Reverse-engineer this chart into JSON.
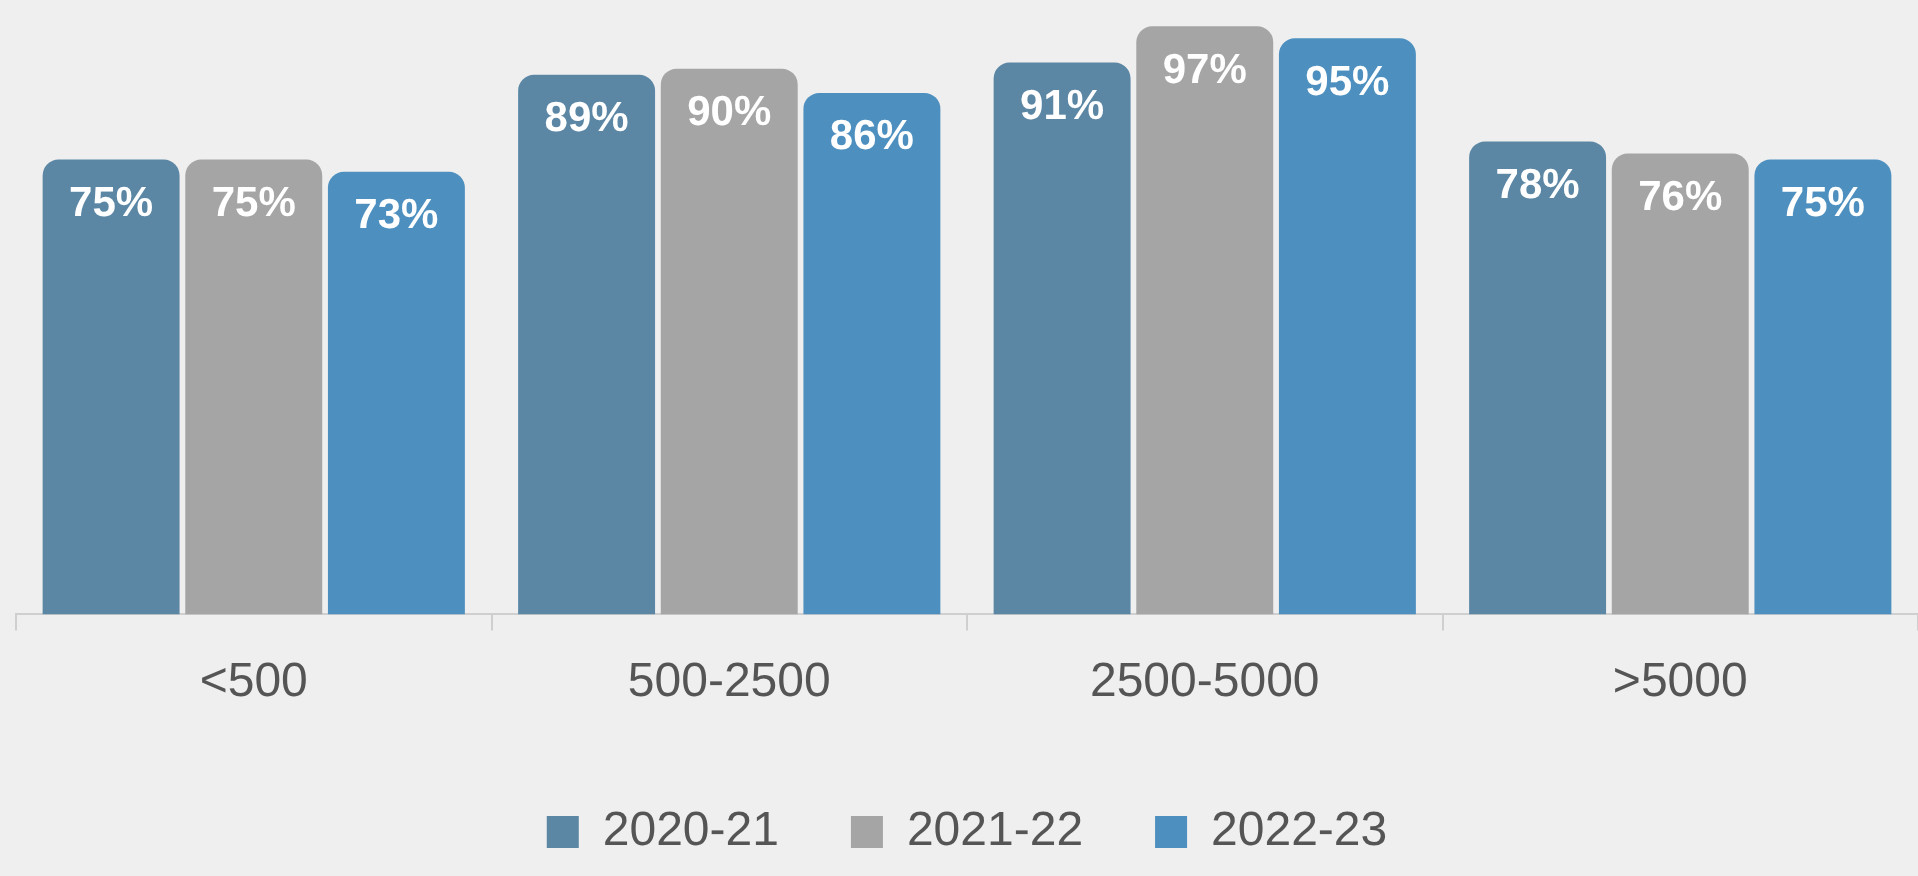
{
  "chart_data": {
    "type": "bar",
    "categories": [
      "<500",
      "500-2500",
      "2500-5000",
      ">5000"
    ],
    "series": [
      {
        "name": "2020-21",
        "color": "#5b87a5",
        "values": [
          75,
          89,
          91,
          78
        ],
        "value_labels": [
          "75%",
          "89%",
          "91%",
          "78%"
        ]
      },
      {
        "name": "2021-22",
        "color": "#a5a5a5",
        "values": [
          75,
          90,
          97,
          76
        ],
        "value_labels": [
          "75%",
          "90%",
          "97%",
          "76%"
        ]
      },
      {
        "name": "2022-23",
        "color": "#4d90c0",
        "values": [
          73,
          86,
          95,
          75
        ],
        "value_labels": [
          "73%",
          "86%",
          "95%",
          "75%"
        ]
      }
    ],
    "grid": false,
    "legend": "bottom"
  }
}
